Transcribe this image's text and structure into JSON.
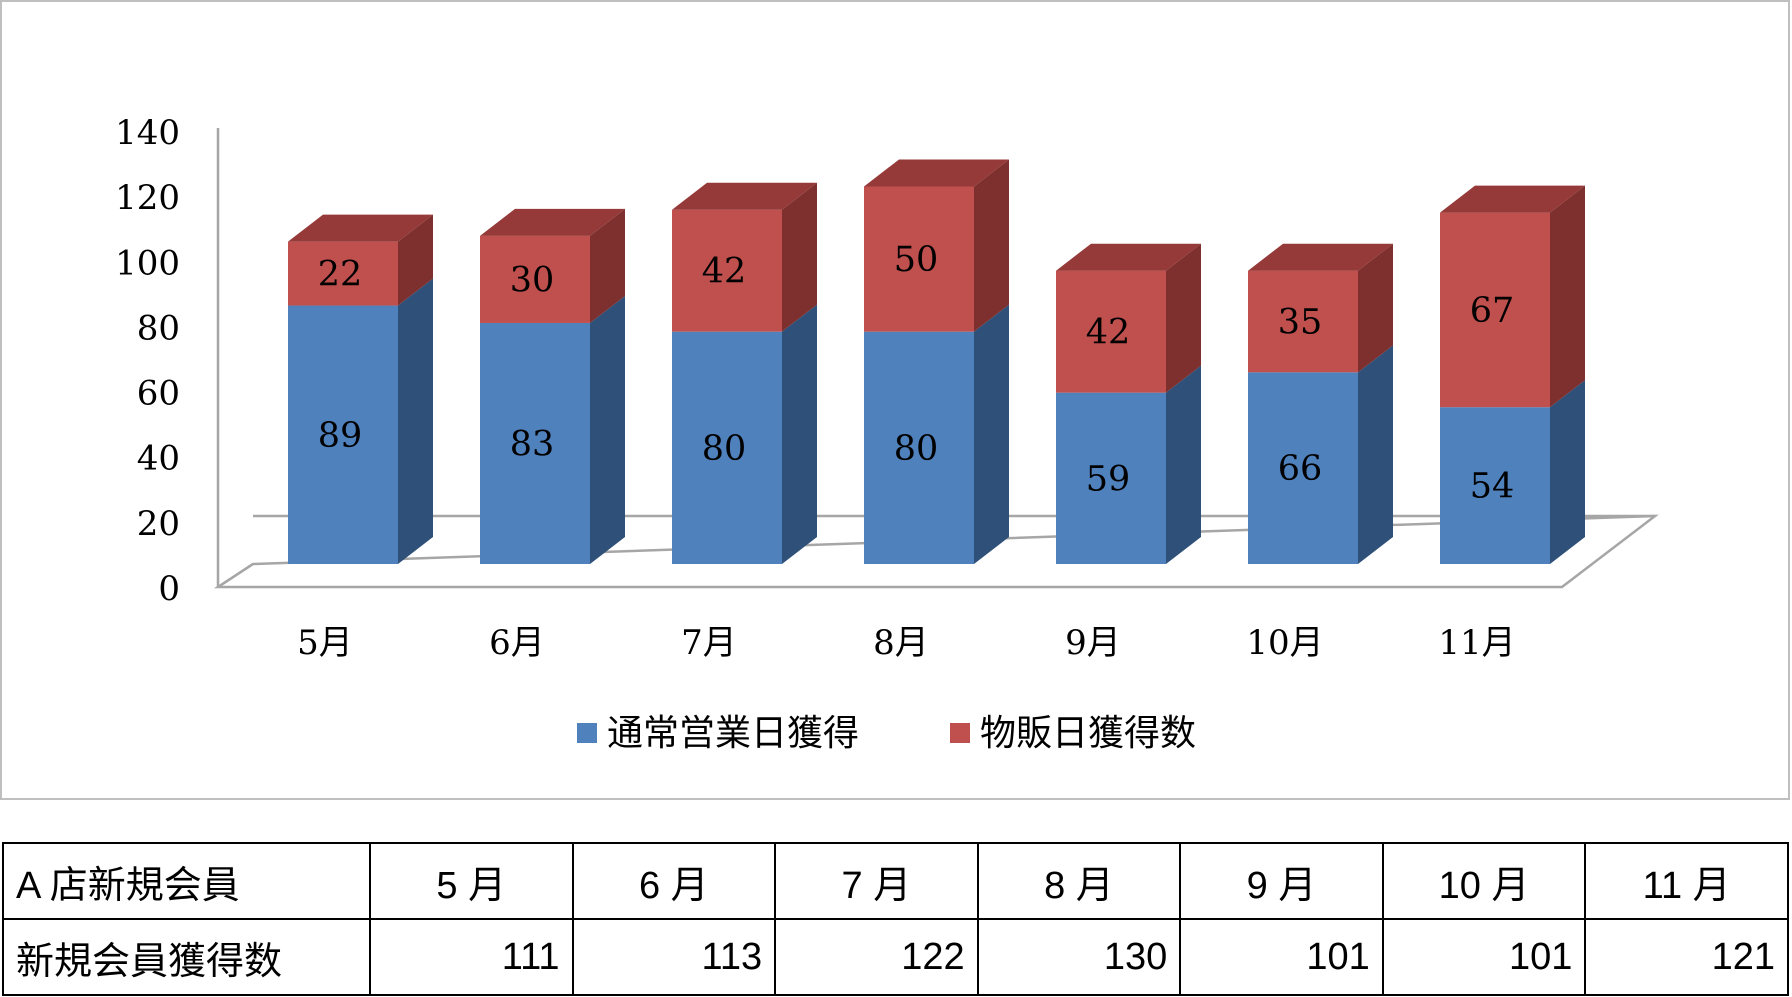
{
  "chart_data": {
    "type": "bar",
    "stacked": true,
    "three_d": true,
    "categories": [
      "5月",
      "6月",
      "7月",
      "8月",
      "9月",
      "10月",
      "11月"
    ],
    "series": [
      {
        "name": "通常営業日獲得",
        "values": [
          89,
          83,
          80,
          80,
          59,
          66,
          54
        ],
        "color": "#4f81bd",
        "side_color": "#2f5078",
        "top_color": "#3d6799"
      },
      {
        "name": "物販日獲得数",
        "values": [
          22,
          30,
          42,
          50,
          42,
          35,
          67
        ],
        "color": "#c0504d",
        "side_color": "#7e302f",
        "top_color": "#953a38"
      }
    ],
    "y_ticks": [
      "0",
      "20",
      "40",
      "60",
      "80",
      "100",
      "120",
      "140"
    ],
    "ylim": [
      0,
      140
    ],
    "grid": false,
    "legend_position": "bottom",
    "data_labels": true
  },
  "table": {
    "header": [
      "A 店新規会員",
      "5 月",
      "6 月",
      "7 月",
      "8 月",
      "9 月",
      "10 月",
      "11 月"
    ],
    "row": [
      "新規会員獲得数",
      "111",
      "113",
      "122",
      "130",
      "101",
      "101",
      "121"
    ]
  }
}
